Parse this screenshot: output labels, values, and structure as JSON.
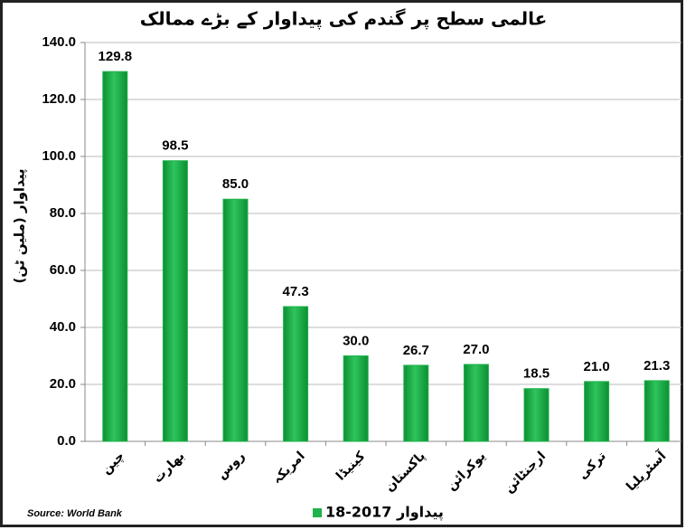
{
  "chart_data": {
    "type": "bar",
    "title": "عالمی سطح پر گندم کی پیداوار کے بڑے ممالک",
    "y_label": "پیداوار (ملین ٹن)",
    "source": "Source: World Bank",
    "categories": [
      "چین",
      "بھارت",
      "روس",
      "امریکہ",
      "کینیڈا",
      "پاکستان",
      "یوکرائن",
      "ارجنٹائن",
      "ترکی",
      "آسٹریلیا"
    ],
    "series": [
      {
        "name": "پیداوار 2017-18",
        "color": "#1fb34a",
        "values": [
          129.8,
          98.5,
          85,
          47.3,
          30,
          26.7,
          27,
          18.5,
          21,
          21.3
        ],
        "value_labels": [
          "129.8",
          "98.5",
          "85.0",
          "47.3",
          "30.0",
          "26.7",
          "27.0",
          "18.5",
          "21.0",
          "21.3"
        ]
      }
    ],
    "ylim": [
      0,
      140
    ],
    "yticks": [
      {
        "value": 0,
        "label": "0.0"
      },
      {
        "value": 20,
        "label": "20.0"
      },
      {
        "value": 40,
        "label": "40.0"
      },
      {
        "value": 60,
        "label": "60.0"
      },
      {
        "value": 80,
        "label": "80.0"
      },
      {
        "value": 100,
        "label": "100.0"
      },
      {
        "value": 120,
        "label": "120.0"
      },
      {
        "value": 140,
        "label": "140.0"
      }
    ],
    "grid": true,
    "legend": "bottom"
  }
}
